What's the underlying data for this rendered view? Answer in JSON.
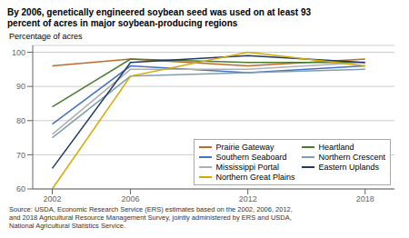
{
  "chart_data": {
    "type": "line",
    "title": "By 2006, genetically engineered soybean seed was used on at least 93\npercent of acres in major soybean-producing regions",
    "y_label": "Percentage of acres",
    "source": "Source: USDA, Economic Research Service (ERS) estimates based on the 2002, 2006, 2012,\nand 2018 Agricultural Resource Management Survey, jointly administered by ERS and USDA,\nNational Agricultural Statistics Service.",
    "x": [
      2002,
      2006,
      2012,
      2018
    ],
    "series": [
      {
        "name": "Prairie Gateway",
        "color": "#c0692a",
        "values": [
          96,
          98,
          96,
          98
        ]
      },
      {
        "name": "Heartland",
        "color": "#4a7c2f",
        "values": [
          84,
          98,
          97,
          97
        ]
      },
      {
        "name": "Southern Seaboard",
        "color": "#4472c4",
        "values": [
          79,
          96,
          94,
          96
        ]
      },
      {
        "name": "Northern Crescent",
        "color": "#7f9fad",
        "values": [
          75,
          93,
          94,
          95
        ]
      },
      {
        "name": "Mississippi Portal",
        "color": "#b0b0b0",
        "values": [
          76,
          95,
          95,
          97
        ]
      },
      {
        "name": "Eastern Uplands",
        "color": "#1f3864",
        "values": [
          66,
          97,
          99,
          97
        ]
      },
      {
        "name": "Northern Great Plains",
        "color": "#d4a800",
        "values": [
          60,
          93,
          100,
          96
        ]
      }
    ],
    "xlim": [
      2001,
      2019.5
    ],
    "xticks": [
      2002,
      2006,
      2012,
      2018
    ],
    "ylim": [
      60,
      102
    ],
    "yticks": [
      60,
      70,
      80,
      90,
      100
    ],
    "grid": true,
    "legend": "lower right"
  }
}
